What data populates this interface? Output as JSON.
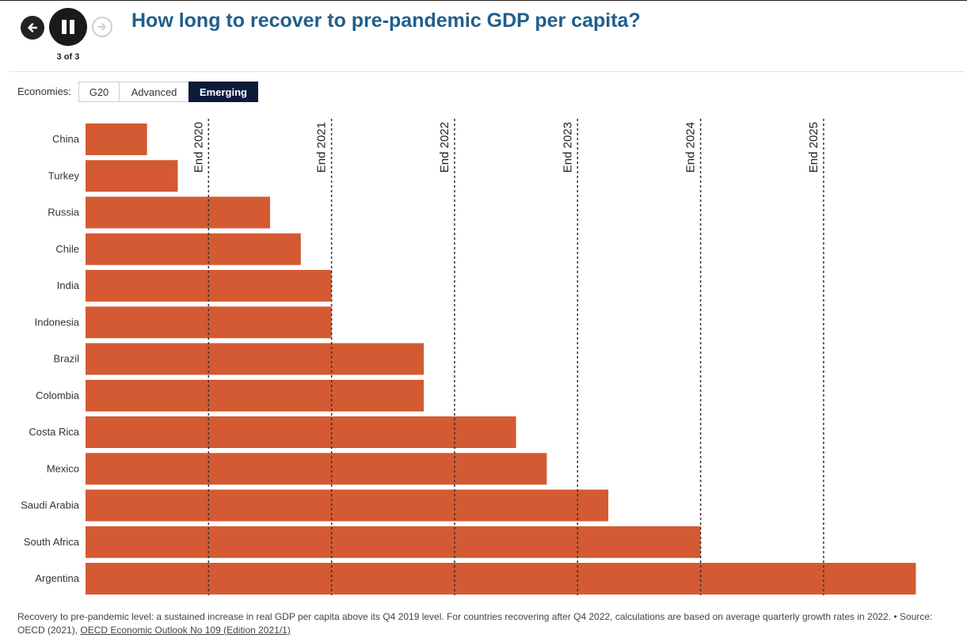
{
  "header": {
    "title": "How long to recover to pre-pandemic GDP per capita?",
    "counter": "3 of 3"
  },
  "filter": {
    "label": "Economies:",
    "options": [
      "G20",
      "Advanced",
      "Emerging"
    ],
    "selected": "Emerging"
  },
  "chart_data": {
    "type": "bar",
    "orientation": "horizontal",
    "title": "How long to recover to pre-pandemic GDP per capita?",
    "categories": [
      "China",
      "Turkey",
      "Russia",
      "Chile",
      "India",
      "Indonesia",
      "Brazil",
      "Colombia",
      "Costa Rica",
      "Mexico",
      "Saudi Arabia",
      "South Africa",
      "Argentina"
    ],
    "values": [
      2,
      3,
      6,
      7,
      8,
      8,
      11,
      11,
      14,
      15,
      17,
      20,
      27
    ],
    "value_unit": "quarters after Q4 2019",
    "reference_lines": [
      {
        "label": "End 2020",
        "value": 4
      },
      {
        "label": "End 2021",
        "value": 8
      },
      {
        "label": "End 2022",
        "value": 12
      },
      {
        "label": "End 2023",
        "value": 16
      },
      {
        "label": "End 2024",
        "value": 20
      },
      {
        "label": "End 2025",
        "value": 24
      }
    ],
    "xlim": [
      0,
      28
    ],
    "bar_color": "#d35a32"
  },
  "footnote": {
    "text": "Recovery to pre-pandemic level: a sustained increase in real GDP per capita above its Q4 2019 level. For countries recovering after Q4 2022, calculations are based on average quarterly growth rates in 2022. • Source: OECD (2021), ",
    "link_text": "OECD Economic Outlook No 109 (Edition 2021/1)"
  },
  "icons": {
    "prev": "arrow-left-icon",
    "pause": "pause-icon",
    "next": "arrow-right-icon"
  }
}
